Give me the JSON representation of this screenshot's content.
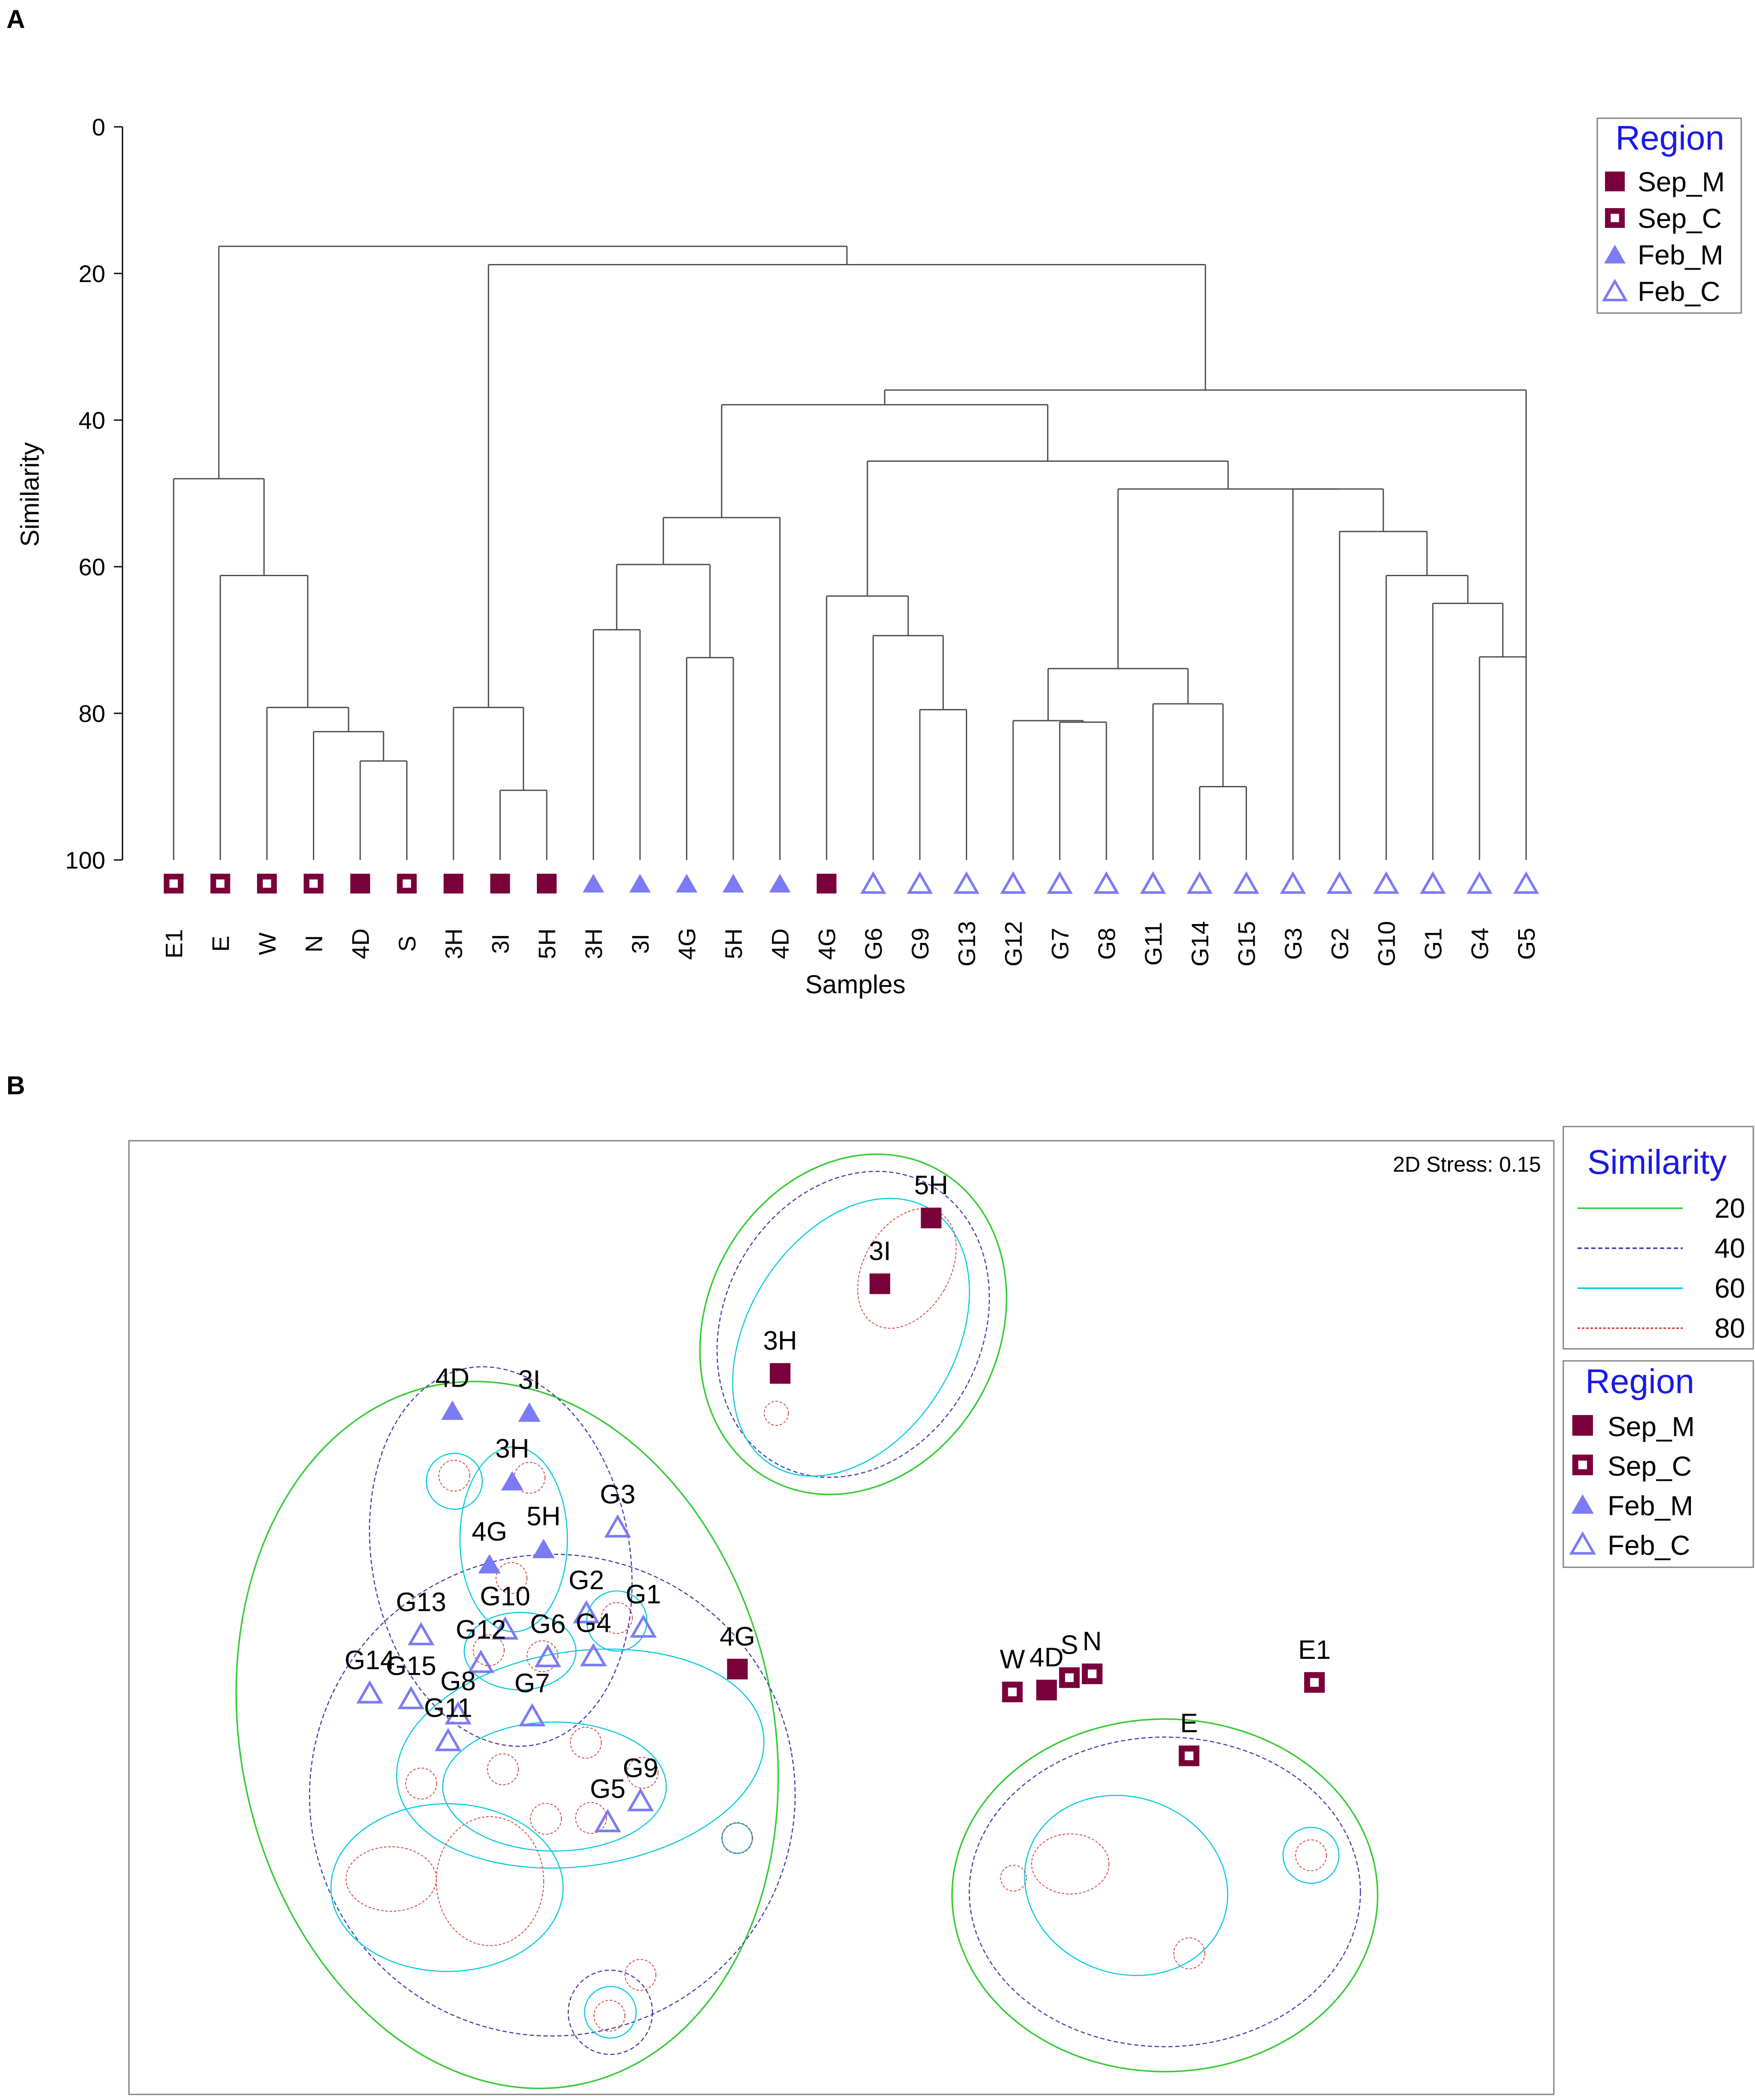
{
  "colors": {
    "sep_marker": "#7a003b",
    "feb_marker": "#7b7bf5",
    "legend_title": "#1a1ae6",
    "sim20": "#33cc33",
    "sim40": "#3a3aa6",
    "sim60": "#00c8e0",
    "sim80": "#d94040",
    "axis": "#000000",
    "frame": "#808080"
  },
  "panel_a": {
    "letter": "A",
    "chart_data": {
      "type": "dendrogram",
      "ylabel": "Similarity",
      "xlabel": "Samples",
      "ylim": [
        0,
        100
      ],
      "yticks": [
        0,
        20,
        40,
        60,
        80,
        100
      ],
      "leaves": [
        {
          "label": "E1",
          "group": "Sep_C"
        },
        {
          "label": "E",
          "group": "Sep_C"
        },
        {
          "label": "W",
          "group": "Sep_C"
        },
        {
          "label": "N",
          "group": "Sep_C"
        },
        {
          "label": "4D",
          "group": "Sep_M"
        },
        {
          "label": "S",
          "group": "Sep_C"
        },
        {
          "label": "3H",
          "group": "Sep_M"
        },
        {
          "label": "3I",
          "group": "Sep_M"
        },
        {
          "label": "5H",
          "group": "Sep_M"
        },
        {
          "label": "3H",
          "group": "Feb_M"
        },
        {
          "label": "3I",
          "group": "Feb_M"
        },
        {
          "label": "4G",
          "group": "Feb_M"
        },
        {
          "label": "5H",
          "group": "Feb_M"
        },
        {
          "label": "4D",
          "group": "Feb_M"
        },
        {
          "label": "4G",
          "group": "Sep_M"
        },
        {
          "label": "G6",
          "group": "Feb_C"
        },
        {
          "label": "G9",
          "group": "Feb_C"
        },
        {
          "label": "G13",
          "group": "Feb_C"
        },
        {
          "label": "G12",
          "group": "Feb_C"
        },
        {
          "label": "G7",
          "group": "Feb_C"
        },
        {
          "label": "G8",
          "group": "Feb_C"
        },
        {
          "label": "G11",
          "group": "Feb_C"
        },
        {
          "label": "G14",
          "group": "Feb_C"
        },
        {
          "label": "G15",
          "group": "Feb_C"
        },
        {
          "label": "G3",
          "group": "Feb_C"
        },
        {
          "label": "G2",
          "group": "Feb_C"
        },
        {
          "label": "G10",
          "group": "Feb_C"
        },
        {
          "label": "G1",
          "group": "Feb_C"
        },
        {
          "label": "G4",
          "group": "Feb_C"
        },
        {
          "label": "G5",
          "group": "Feb_C"
        }
      ],
      "merges": [
        {
          "left": "L4",
          "right": "L5",
          "sim": 86.5
        },
        {
          "left": "L3",
          "right": "M0",
          "sim": 82.5
        },
        {
          "left": "L2",
          "right": "M1",
          "sim": 79.2
        },
        {
          "left": "L1",
          "right": "M2",
          "sim": 61.2
        },
        {
          "left": "L0",
          "right": "M3",
          "sim": 48.0
        },
        {
          "left": "L7",
          "right": "L8",
          "sim": 90.5
        },
        {
          "left": "L6",
          "right": "M5",
          "sim": 79.2
        },
        {
          "left": "L9",
          "right": "L10",
          "sim": 68.6
        },
        {
          "left": "L11",
          "right": "L12",
          "sim": 72.4
        },
        {
          "left": "M7",
          "right": "M8",
          "sim": 59.7
        },
        {
          "left": "M9",
          "right": "L13",
          "sim": 53.3
        },
        {
          "left": "L16",
          "right": "L17",
          "sim": 79.5
        },
        {
          "left": "L15",
          "right": "M11",
          "sim": 69.4
        },
        {
          "left": "L14",
          "right": "M12",
          "sim": 64.0
        },
        {
          "left": "L19",
          "right": "L20",
          "sim": 81.2
        },
        {
          "left": "L18",
          "right": "M14",
          "sim": 81.0
        },
        {
          "left": "L22",
          "right": "L23",
          "sim": 90.0
        },
        {
          "left": "L21",
          "right": "M16",
          "sim": 78.7
        },
        {
          "left": "M15",
          "right": "M17",
          "sim": 73.9
        },
        {
          "left": "L28",
          "right": "L29",
          "sim": 72.3
        },
        {
          "left": "L27",
          "right": "M19",
          "sim": 65.0
        },
        {
          "left": "L26",
          "right": "M20",
          "sim": 61.2
        },
        {
          "left": "L25",
          "right": "M21",
          "sim": 55.2
        },
        {
          "left": "L24",
          "right": "M22",
          "sim": 49.4
        },
        {
          "left": "M18",
          "right": "M23",
          "sim": 49.4
        },
        {
          "left": "M13",
          "right": "M24",
          "sim": 45.6
        },
        {
          "left": "M10",
          "right": "M25",
          "sim": 37.9
        },
        {
          "left": "M26",
          "right": "L29_root",
          "sim": 35.9
        },
        {
          "left": "M6",
          "right": "M27",
          "sim": 18.8
        },
        {
          "left": "M4",
          "right": "M28",
          "sim": 16.3
        }
      ]
    },
    "legend": {
      "title": "Region",
      "items": [
        {
          "label": "Sep_M",
          "marker": "filled-square"
        },
        {
          "label": "Sep_C",
          "marker": "open-square"
        },
        {
          "label": "Feb_M",
          "marker": "filled-triangle"
        },
        {
          "label": "Feb_C",
          "marker": "open-triangle"
        }
      ]
    }
  },
  "panel_b": {
    "letter": "B",
    "stress_text": "2D Stress: 0.15",
    "chart_data": {
      "type": "scatter",
      "xlim": [
        0,
        100
      ],
      "ylim": [
        0,
        100
      ],
      "points": [
        {
          "label": "5H",
          "group": "Sep_M",
          "x": 56.3,
          "y": 91.9
        },
        {
          "label": "3I",
          "group": "Sep_M",
          "x": 52.7,
          "y": 85.0
        },
        {
          "label": "3H",
          "group": "Sep_M",
          "x": 45.7,
          "y": 75.6
        },
        {
          "label": "4D",
          "group": "Feb_M",
          "x": 22.7,
          "y": 71.7
        },
        {
          "label": "3I",
          "group": "Feb_M",
          "x": 28.1,
          "y": 71.5
        },
        {
          "label": "3H",
          "group": "Feb_M",
          "x": 26.9,
          "y": 64.3
        },
        {
          "label": "G3",
          "group": "Feb_C",
          "x": 34.3,
          "y": 59.5
        },
        {
          "label": "5H",
          "group": "Feb_M",
          "x": 29.1,
          "y": 57.2
        },
        {
          "label": "4G",
          "group": "Feb_M",
          "x": 25.3,
          "y": 55.6
        },
        {
          "label": "G2",
          "group": "Feb_C",
          "x": 32.1,
          "y": 50.5
        },
        {
          "label": "G1",
          "group": "Feb_C",
          "x": 36.1,
          "y": 49.0
        },
        {
          "label": "G10",
          "group": "Feb_C",
          "x": 26.4,
          "y": 48.8
        },
        {
          "label": "G13",
          "group": "Feb_C",
          "x": 20.5,
          "y": 48.2
        },
        {
          "label": "G6",
          "group": "Feb_C",
          "x": 29.4,
          "y": 45.9
        },
        {
          "label": "G4",
          "group": "Feb_C",
          "x": 32.6,
          "y": 46.0
        },
        {
          "label": "G12",
          "group": "Feb_C",
          "x": 24.7,
          "y": 45.3
        },
        {
          "label": "4G",
          "group": "Sep_M",
          "x": 42.7,
          "y": 44.6
        },
        {
          "label": "G14",
          "group": "Feb_C",
          "x": 16.9,
          "y": 42.1
        },
        {
          "label": "G15",
          "group": "Feb_C",
          "x": 19.8,
          "y": 41.5
        },
        {
          "label": "G8",
          "group": "Feb_C",
          "x": 23.1,
          "y": 39.9
        },
        {
          "label": "G7",
          "group": "Feb_C",
          "x": 28.3,
          "y": 39.7
        },
        {
          "label": "G11",
          "group": "Feb_C",
          "x": 22.4,
          "y": 37.1
        },
        {
          "label": "G9",
          "group": "Feb_C",
          "x": 35.9,
          "y": 30.8
        },
        {
          "label": "G5",
          "group": "Feb_C",
          "x": 33.6,
          "y": 28.6
        },
        {
          "label": "W",
          "group": "Sep_C",
          "x": 62.0,
          "y": 42.2
        },
        {
          "label": "4D",
          "group": "Sep_M",
          "x": 64.4,
          "y": 42.4
        },
        {
          "label": "S",
          "group": "Sep_C",
          "x": 66.0,
          "y": 43.7
        },
        {
          "label": "N",
          "group": "Sep_C",
          "x": 67.6,
          "y": 44.1
        },
        {
          "label": "E1",
          "group": "Sep_C",
          "x": 83.2,
          "y": 43.2
        },
        {
          "label": "E",
          "group": "Sep_C",
          "x": 74.4,
          "y": 35.5
        }
      ],
      "similarity_contours": [
        20,
        40,
        60,
        80
      ]
    },
    "similarity_legend": {
      "title": "Similarity",
      "items": [
        {
          "label": "20",
          "level": "sim20"
        },
        {
          "label": "40",
          "level": "sim40"
        },
        {
          "label": "60",
          "level": "sim60"
        },
        {
          "label": "80",
          "level": "sim80"
        }
      ]
    },
    "region_legend": {
      "title": "Region",
      "items": [
        {
          "label": "Sep_M",
          "marker": "filled-square"
        },
        {
          "label": "Sep_C",
          "marker": "open-square"
        },
        {
          "label": "Feb_M",
          "marker": "filled-triangle"
        },
        {
          "label": "Feb_C",
          "marker": "open-triangle"
        }
      ]
    }
  }
}
